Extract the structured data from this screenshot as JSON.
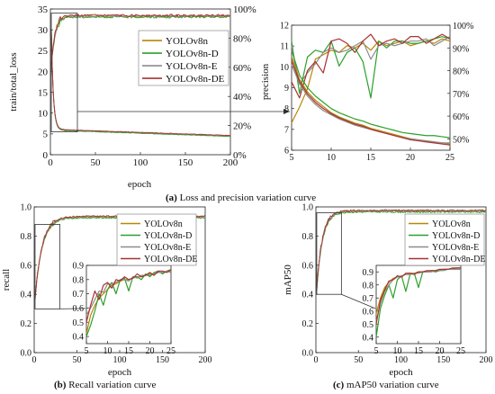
{
  "series_styles": [
    {
      "name": "YOLOv8n",
      "color": "#b8860b"
    },
    {
      "name": "YOLOv8n-D",
      "color": "#2ca02c"
    },
    {
      "name": "YOLOv8n-E",
      "color": "#8c8c8c"
    },
    {
      "name": "YOLOv8n-DE",
      "color": "#a83232"
    }
  ],
  "chart_data": [
    {
      "id": "a_main",
      "type": "line",
      "caption_letter": "(a)",
      "caption_text": " Loss and precision variation curve",
      "xlabel": "epoch",
      "ylabel_left": "train/total_loss",
      "ylabel_right": "precision",
      "xlim": [
        0,
        200
      ],
      "xticks": [
        "0",
        "50",
        "100",
        "150",
        "200"
      ],
      "ylim_left": [
        0,
        35
      ],
      "yticks_left": [
        "0",
        "5",
        "10",
        "15",
        "20",
        "25",
        "30",
        "35"
      ],
      "ylim_right": [
        0,
        100
      ],
      "yticks_right": [
        "0%",
        "20%",
        "40%",
        "60%",
        "80%",
        "100%"
      ],
      "legend": [
        "YOLOv8n",
        "YOLOv8n-D",
        "YOLOv8n-E",
        "YOLOv8n-DE"
      ],
      "loss_model": {
        "start": 30,
        "floor": 6.0,
        "end": 4.5
      },
      "precision_model": {
        "start": 50,
        "plateau": 95,
        "epoch_reached": 12
      },
      "zoom_box": {
        "x": [
          1,
          30
        ],
        "y_left": [
          5.5,
          34
        ]
      }
    },
    {
      "id": "a_inset",
      "type": "line",
      "xlim": [
        5,
        25
      ],
      "xticks": [
        "5",
        "10",
        "15",
        "20",
        "25"
      ],
      "ylim_left": [
        6,
        12
      ],
      "yticks_left": [
        "6",
        "7",
        "8",
        "9",
        "10",
        "11",
        "12"
      ],
      "ylim_right": [
        45,
        100
      ],
      "yticks_right": [
        "50%",
        "60%",
        "70%",
        "80%",
        "90%",
        "100%"
      ],
      "loss_series": [
        {
          "name": "YOLOv8n",
          "x": [
            5,
            6,
            7,
            8,
            9,
            10,
            11,
            12,
            13,
            14,
            15,
            16,
            17,
            18,
            19,
            20,
            21,
            22,
            23,
            24,
            25
          ],
          "values": [
            10.5,
            9.4,
            8.8,
            8.4,
            8.1,
            7.8,
            7.6,
            7.45,
            7.3,
            7.2,
            7.05,
            6.95,
            6.85,
            6.75,
            6.65,
            6.55,
            6.5,
            6.45,
            6.4,
            6.35,
            6.3
          ]
        },
        {
          "name": "YOLOv8n-D",
          "x": [
            5,
            6,
            7,
            8,
            9,
            10,
            11,
            12,
            13,
            14,
            15,
            16,
            17,
            18,
            19,
            20,
            21,
            22,
            23,
            24,
            25
          ],
          "values": [
            10.8,
            9.6,
            9.0,
            8.6,
            8.3,
            8.0,
            7.8,
            7.65,
            7.5,
            7.4,
            7.25,
            7.15,
            7.05,
            6.95,
            6.85,
            6.8,
            6.75,
            6.7,
            6.7,
            6.65,
            6.6
          ]
        },
        {
          "name": "YOLOv8n-E",
          "x": [
            5,
            6,
            7,
            8,
            9,
            10,
            11,
            12,
            13,
            14,
            15,
            16,
            17,
            18,
            19,
            20,
            21,
            22,
            23,
            24,
            25
          ],
          "values": [
            10.1,
            9.2,
            8.6,
            8.2,
            7.9,
            7.7,
            7.5,
            7.35,
            7.2,
            7.1,
            7.0,
            6.9,
            6.8,
            6.7,
            6.6,
            6.55,
            6.5,
            6.45,
            6.4,
            6.35,
            6.35
          ]
        },
        {
          "name": "YOLOv8n-DE",
          "x": [
            5,
            6,
            7,
            8,
            9,
            10,
            11,
            12,
            13,
            14,
            15,
            16,
            17,
            18,
            19,
            20,
            21,
            22,
            23,
            24,
            25
          ],
          "values": [
            10.3,
            9.3,
            8.7,
            8.3,
            8.0,
            7.75,
            7.55,
            7.4,
            7.25,
            7.15,
            7.0,
            6.9,
            6.8,
            6.7,
            6.6,
            6.5,
            6.45,
            6.4,
            6.35,
            6.3,
            6.25
          ]
        }
      ],
      "precision_series": [
        {
          "name": "YOLOv8n",
          "x": [
            5,
            6,
            7,
            8,
            9,
            10,
            11,
            12,
            13,
            14,
            15,
            16,
            17,
            18,
            19,
            20,
            21,
            22,
            23,
            24,
            25
          ],
          "values": [
            57,
            64,
            72,
            85,
            87,
            89,
            88,
            91,
            90,
            92,
            89,
            93,
            91,
            92,
            93,
            91,
            92,
            93,
            92,
            94,
            93
          ]
        },
        {
          "name": "YOLOv8n-D",
          "x": [
            5,
            6,
            7,
            8,
            9,
            10,
            11,
            12,
            13,
            14,
            15,
            16,
            17,
            18,
            19,
            20,
            21,
            22,
            23,
            24,
            25
          ],
          "values": [
            93,
            70,
            86,
            89,
            88,
            93,
            82,
            88,
            90,
            84,
            68,
            93,
            90,
            93,
            93,
            92,
            92,
            93,
            94,
            95,
            94
          ]
        },
        {
          "name": "YOLOv8n-E",
          "x": [
            5,
            6,
            7,
            8,
            9,
            10,
            11,
            12,
            13,
            14,
            15,
            16,
            17,
            18,
            19,
            20,
            21,
            22,
            23,
            24,
            25
          ],
          "values": [
            91,
            74,
            79,
            83,
            88,
            90,
            88,
            89,
            91,
            93,
            85,
            91,
            92,
            91,
            92,
            93,
            93,
            94,
            91,
            93,
            95
          ]
        },
        {
          "name": "YOLOv8n-DE",
          "x": [
            5,
            6,
            7,
            8,
            9,
            10,
            11,
            12,
            13,
            14,
            15,
            16,
            17,
            18,
            19,
            20,
            21,
            22,
            23,
            24,
            25
          ],
          "values": [
            75,
            68,
            80,
            84,
            79,
            93,
            94,
            92,
            88,
            93,
            96,
            91,
            93,
            94,
            92,
            95,
            95,
            92,
            94,
            96,
            94
          ]
        }
      ]
    },
    {
      "id": "b",
      "type": "line",
      "caption_letter": "(b)",
      "caption_text": " Recall variation curve",
      "xlabel": "epoch",
      "ylabel": "recall",
      "xlim": [
        0,
        200
      ],
      "xticks": [
        "0",
        "50",
        "100",
        "150",
        "200"
      ],
      "ylim": [
        0,
        1.0
      ],
      "yticks": [
        "0.0",
        "0.2",
        "0.4",
        "0.6",
        "0.8",
        "1.0"
      ],
      "legend": [
        "YOLOv8n",
        "YOLOv8n-D",
        "YOLOv8n-E",
        "YOLOv8n-DE"
      ],
      "main_model": {
        "start": 0.3,
        "plateau": 0.93,
        "epoch_reached": 25
      },
      "zoom_box": {
        "x": [
          1,
          30
        ],
        "y": [
          0.3,
          0.88
        ]
      },
      "inset": {
        "xlim": [
          5,
          25
        ],
        "xticks": [
          "5",
          "10",
          "15",
          "20",
          "25"
        ],
        "ylim": [
          0.35,
          0.9
        ],
        "yticks": [
          "0.4",
          "0.5",
          "0.6",
          "0.7",
          "0.8",
          "0.9"
        ],
        "series": [
          {
            "name": "YOLOv8n",
            "x": [
              5,
              6,
              7,
              8,
              9,
              10,
              11,
              12,
              13,
              14,
              15,
              16,
              17,
              18,
              19,
              20,
              21,
              22,
              23,
              24,
              25
            ],
            "values": [
              0.42,
              0.55,
              0.62,
              0.67,
              0.7,
              0.73,
              0.76,
              0.77,
              0.79,
              0.8,
              0.8,
              0.81,
              0.82,
              0.82,
              0.83,
              0.83,
              0.84,
              0.85,
              0.85,
              0.86,
              0.86
            ]
          },
          {
            "name": "YOLOv8n-D",
            "x": [
              5,
              6,
              7,
              8,
              9,
              10,
              11,
              12,
              13,
              14,
              15,
              16,
              17,
              18,
              19,
              20,
              21,
              22,
              23,
              24,
              25
            ],
            "values": [
              0.4,
              0.48,
              0.58,
              0.7,
              0.62,
              0.73,
              0.78,
              0.7,
              0.8,
              0.81,
              0.72,
              0.82,
              0.82,
              0.8,
              0.84,
              0.82,
              0.85,
              0.86,
              0.84,
              0.86,
              0.87
            ]
          },
          {
            "name": "YOLOv8n-E",
            "x": [
              5,
              6,
              7,
              8,
              9,
              10,
              11,
              12,
              13,
              14,
              15,
              16,
              17,
              18,
              19,
              20,
              21,
              22,
              23,
              24,
              25
            ],
            "values": [
              0.55,
              0.6,
              0.66,
              0.72,
              0.71,
              0.77,
              0.77,
              0.78,
              0.8,
              0.8,
              0.79,
              0.82,
              0.81,
              0.83,
              0.83,
              0.84,
              0.84,
              0.85,
              0.85,
              0.86,
              0.85
            ]
          },
          {
            "name": "YOLOv8n-DE",
            "x": [
              5,
              6,
              7,
              8,
              9,
              10,
              11,
              12,
              13,
              14,
              15,
              16,
              17,
              18,
              19,
              20,
              21,
              22,
              23,
              24,
              25
            ],
            "values": [
              0.5,
              0.62,
              0.72,
              0.66,
              0.76,
              0.78,
              0.74,
              0.8,
              0.79,
              0.82,
              0.8,
              0.81,
              0.84,
              0.82,
              0.83,
              0.85,
              0.83,
              0.86,
              0.86,
              0.85,
              0.87
            ]
          }
        ]
      }
    },
    {
      "id": "c",
      "type": "line",
      "caption_letter": "(c)",
      "caption_text": " mAP50 variation curve",
      "xlabel": "epoch",
      "ylabel": "mAP50",
      "xlim": [
        0,
        200
      ],
      "xticks": [
        "0",
        "50",
        "100",
        "150",
        "200"
      ],
      "ylim": [
        0,
        1.0
      ],
      "yticks": [
        "0.0",
        "0.2",
        "0.4",
        "0.6",
        "0.8",
        "1.0"
      ],
      "legend": [
        "YOLOv8n",
        "YOLOv8n-D",
        "YOLOv8n-E",
        "YOLOv8n-DE"
      ],
      "main_model": {
        "start": 0.35,
        "plateau": 0.97,
        "epoch_reached": 20
      },
      "zoom_box": {
        "x": [
          1,
          30
        ],
        "y": [
          0.4,
          0.96
        ]
      },
      "inset": {
        "xlim": [
          5,
          25
        ],
        "xticks": [
          "5",
          "10",
          "15",
          "20",
          "25"
        ],
        "ylim": [
          0.35,
          0.95
        ],
        "yticks": [
          "0.4",
          "0.5",
          "0.6",
          "0.7",
          "0.8",
          "0.9"
        ],
        "series": [
          {
            "name": "YOLOv8n",
            "x": [
              5,
              6,
              7,
              8,
              9,
              10,
              11,
              12,
              13,
              14,
              15,
              16,
              17,
              18,
              19,
              20,
              21,
              22,
              23,
              24,
              25
            ],
            "values": [
              0.58,
              0.7,
              0.78,
              0.82,
              0.85,
              0.86,
              0.87,
              0.88,
              0.89,
              0.89,
              0.9,
              0.9,
              0.9,
              0.91,
              0.91,
              0.91,
              0.92,
              0.92,
              0.92,
              0.92,
              0.92
            ]
          },
          {
            "name": "YOLOv8n-D",
            "x": [
              5,
              6,
              7,
              8,
              9,
              10,
              11,
              12,
              13,
              14,
              15,
              16,
              17,
              18,
              19,
              20,
              21,
              22,
              23,
              24,
              25
            ],
            "values": [
              0.4,
              0.62,
              0.72,
              0.8,
              0.7,
              0.84,
              0.87,
              0.75,
              0.88,
              0.89,
              0.78,
              0.9,
              0.9,
              0.91,
              0.9,
              0.91,
              0.92,
              0.92,
              0.92,
              0.93,
              0.93
            ]
          },
          {
            "name": "YOLOv8n-E",
            "x": [
              5,
              6,
              7,
              8,
              9,
              10,
              11,
              12,
              13,
              14,
              15,
              16,
              17,
              18,
              19,
              20,
              21,
              22,
              23,
              24,
              25
            ],
            "values": [
              0.52,
              0.66,
              0.75,
              0.8,
              0.84,
              0.86,
              0.87,
              0.88,
              0.88,
              0.89,
              0.89,
              0.9,
              0.9,
              0.9,
              0.91,
              0.91,
              0.91,
              0.92,
              0.92,
              0.92,
              0.92
            ]
          },
          {
            "name": "YOLOv8n-DE",
            "x": [
              5,
              6,
              7,
              8,
              9,
              10,
              11,
              12,
              13,
              14,
              15,
              16,
              17,
              18,
              19,
              20,
              21,
              22,
              23,
              24,
              25
            ],
            "values": [
              0.5,
              0.68,
              0.76,
              0.83,
              0.84,
              0.87,
              0.86,
              0.89,
              0.89,
              0.88,
              0.9,
              0.9,
              0.91,
              0.91,
              0.91,
              0.92,
              0.92,
              0.92,
              0.93,
              0.93,
              0.93
            ]
          }
        ]
      }
    }
  ]
}
